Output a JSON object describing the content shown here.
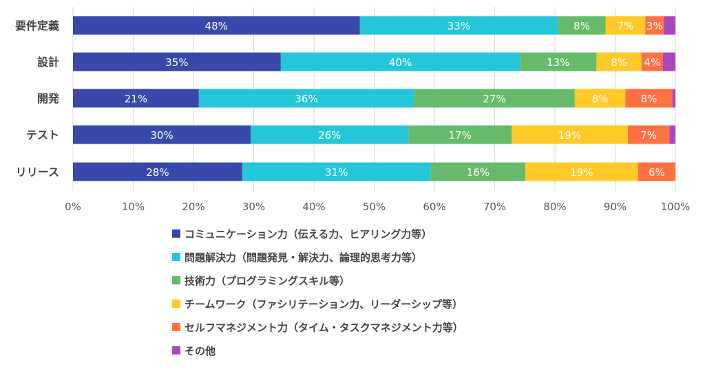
{
  "chart_data": {
    "type": "bar",
    "orientation": "horizontal",
    "stacked": "100%",
    "categories": [
      "要件定義",
      "設計",
      "開発",
      "テスト",
      "リリース"
    ],
    "xlim": [
      0,
      100
    ],
    "xticks": [
      "0%",
      "10%",
      "20%",
      "30%",
      "40%",
      "50%",
      "60%",
      "70%",
      "80%",
      "90%",
      "100%"
    ],
    "grid": true,
    "legend_position": "bottom",
    "series": [
      {
        "name": "コミュニケーション力（伝える力、ヒアリング力等）",
        "color": "#3949ab",
        "values": [
          47.6,
          34.5,
          20.9,
          29.5,
          28.1
        ],
        "labels": [
          "48%",
          "35%",
          "21%",
          "30%",
          "28%"
        ]
      },
      {
        "name": "問題解決力（問題発見・解決力、論理的思考力等）",
        "color": "#26c6da",
        "values": [
          32.9,
          39.7,
          35.7,
          26.2,
          31.3
        ],
        "labels": [
          "33%",
          "40%",
          "36%",
          "26%",
          "31%"
        ]
      },
      {
        "name": "技術力（プログラミングスキル等）",
        "color": "#66bb6a",
        "values": [
          7.9,
          12.7,
          26.7,
          17.1,
          15.7
        ],
        "labels": [
          "8%",
          "13%",
          "27%",
          "17%",
          "16%"
        ]
      },
      {
        "name": "チームワーク（ファシリテーション力、リーダーシップ等）",
        "color": "#ffca28",
        "values": [
          6.6,
          7.5,
          8.4,
          19.3,
          18.7
        ],
        "labels": [
          "7%",
          "8%",
          "8%",
          "19%",
          "19%"
        ]
      },
      {
        "name": "セルフマネジメント力（タイム・タスクマネジメント力等）",
        "color": "#ff7043",
        "values": [
          3.1,
          3.5,
          7.8,
          6.9,
          6.2
        ],
        "labels": [
          "3%",
          "4%",
          "8%",
          "7%",
          "6%"
        ]
      },
      {
        "name": "その他",
        "color": "#ab47bc",
        "values": [
          1.9,
          2.1,
          0.5,
          1.0,
          0.0
        ],
        "labels": [
          "",
          "",
          "",
          "",
          ""
        ]
      }
    ]
  }
}
